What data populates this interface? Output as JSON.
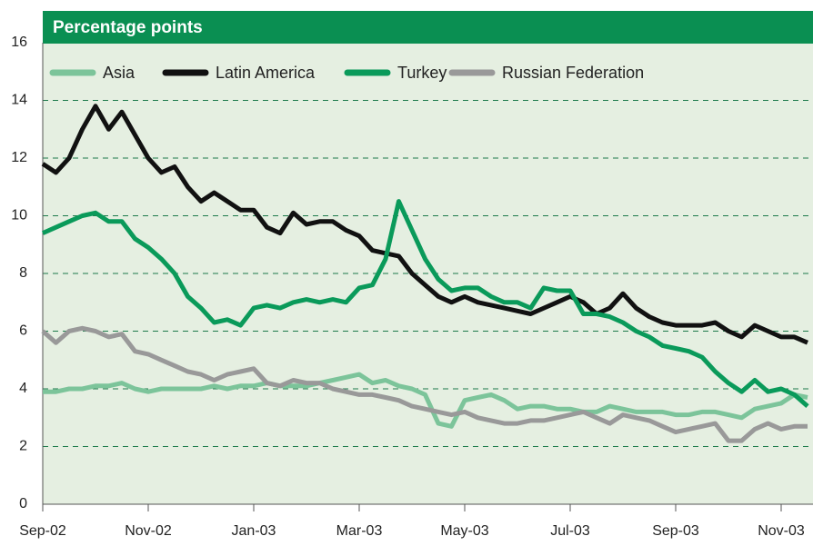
{
  "chart_data": {
    "type": "line",
    "title": "Percentage points",
    "categories": [
      "Sep-02",
      null,
      null,
      null,
      null,
      null,
      null,
      null,
      "Nov-02",
      null,
      null,
      null,
      null,
      null,
      null,
      null,
      "Jan-03",
      null,
      null,
      null,
      null,
      null,
      null,
      null,
      "Mar-03",
      null,
      null,
      null,
      null,
      null,
      null,
      null,
      "May-03",
      null,
      null,
      null,
      null,
      null,
      null,
      null,
      "Jul-03",
      null,
      null,
      null,
      null,
      null,
      null,
      null,
      "Sep-03",
      null,
      null,
      null,
      null,
      null,
      null,
      null,
      "Nov-03",
      null,
      null
    ],
    "series": [
      {
        "name": "Asia",
        "color": "#7cc49a",
        "values": [
          3.9,
          3.9,
          4.0,
          4.0,
          4.1,
          4.1,
          4.2,
          4.0,
          3.9,
          4.0,
          4.0,
          4.0,
          4.0,
          4.1,
          4.0,
          4.1,
          4.1,
          4.2,
          4.1,
          4.1,
          4.1,
          4.2,
          4.3,
          4.4,
          4.5,
          4.2,
          4.3,
          4.1,
          4.0,
          3.8,
          2.8,
          2.7,
          3.6,
          3.7,
          3.8,
          3.6,
          3.3,
          3.4,
          3.4,
          3.3,
          3.3,
          3.2,
          3.2,
          3.4,
          3.3,
          3.2,
          3.2,
          3.2,
          3.1,
          3.1,
          3.2,
          3.2,
          3.1,
          3.0,
          3.3,
          3.4,
          3.5,
          3.8,
          3.7
        ]
      },
      {
        "name": "Latin America",
        "color": "#111111",
        "values": [
          11.8,
          11.5,
          12.0,
          13.0,
          13.8,
          13.0,
          13.6,
          12.8,
          12.0,
          11.5,
          11.7,
          11.0,
          10.5,
          10.8,
          10.5,
          10.2,
          10.2,
          9.6,
          9.4,
          10.1,
          9.7,
          9.8,
          9.8,
          9.5,
          9.3,
          8.8,
          8.7,
          8.6,
          8.0,
          7.6,
          7.2,
          7.0,
          7.2,
          7.0,
          6.9,
          6.8,
          6.7,
          6.6,
          6.8,
          7.0,
          7.2,
          7.0,
          6.6,
          6.8,
          7.3,
          6.8,
          6.5,
          6.3,
          6.2,
          6.2,
          6.2,
          6.3,
          6.0,
          5.8,
          6.2,
          6.0,
          5.8,
          5.8,
          5.6
        ]
      },
      {
        "name": "Turkey",
        "color": "#0a9a5a",
        "values": [
          9.4,
          9.6,
          9.8,
          10.0,
          10.1,
          9.8,
          9.8,
          9.2,
          8.9,
          8.5,
          8.0,
          7.2,
          6.8,
          6.3,
          6.4,
          6.2,
          6.8,
          6.9,
          6.8,
          7.0,
          7.1,
          7.0,
          7.1,
          7.0,
          7.5,
          7.6,
          8.5,
          10.5,
          9.5,
          8.5,
          7.8,
          7.4,
          7.5,
          7.5,
          7.2,
          7.0,
          7.0,
          6.8,
          7.5,
          7.4,
          7.4,
          6.6,
          6.6,
          6.5,
          6.3,
          6.0,
          5.8,
          5.5,
          5.4,
          5.3,
          5.1,
          4.6,
          4.2,
          3.9,
          4.3,
          3.9,
          4.0,
          3.8,
          3.4
        ]
      },
      {
        "name": "Russian Federation",
        "color": "#999999",
        "values": [
          6.0,
          5.6,
          6.0,
          6.1,
          6.0,
          5.8,
          5.9,
          5.3,
          5.2,
          5.0,
          4.8,
          4.6,
          4.5,
          4.3,
          4.5,
          4.6,
          4.7,
          4.2,
          4.1,
          4.3,
          4.2,
          4.2,
          4.0,
          3.9,
          3.8,
          3.8,
          3.7,
          3.6,
          3.4,
          3.3,
          3.2,
          3.1,
          3.2,
          3.0,
          2.9,
          2.8,
          2.8,
          2.9,
          2.9,
          3.0,
          3.1,
          3.2,
          3.0,
          2.8,
          3.1,
          3.0,
          2.9,
          2.7,
          2.5,
          2.6,
          2.7,
          2.8,
          2.2,
          2.2,
          2.6,
          2.8,
          2.6,
          2.7,
          2.7
        ]
      }
    ],
    "ylim": [
      0,
      16
    ],
    "yticks": [
      0,
      2,
      4,
      6,
      8,
      10,
      12,
      14,
      16
    ],
    "grid": true
  }
}
